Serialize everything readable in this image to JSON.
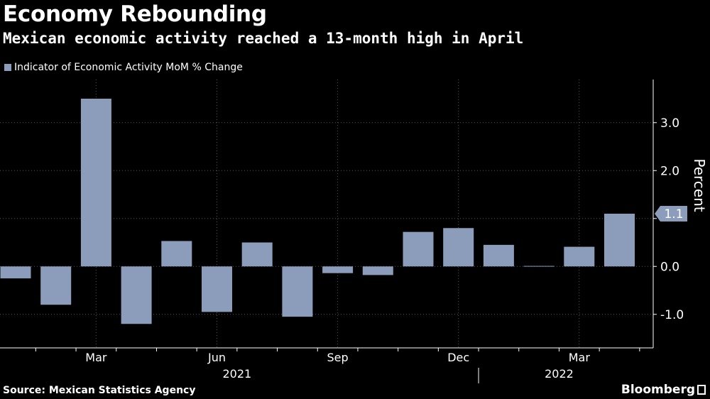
{
  "header": {
    "title": "Economy Rebounding",
    "subtitle": "Mexican economic activity reached a 13-month high in April"
  },
  "footer": {
    "source": "Source: Mexican Statistics Agency",
    "brand": "Bloomberg"
  },
  "colors": {
    "background": "#000000",
    "bar": "#8b9dbb",
    "text": "#ffffff",
    "grid": "#555555"
  },
  "chart_data": {
    "type": "bar",
    "series": [
      {
        "name": "Indicator of Economic Activity MoM % Change",
        "values": [
          -0.25,
          -0.8,
          3.5,
          -1.2,
          0.53,
          -0.95,
          0.5,
          -1.05,
          -0.14,
          -0.18,
          0.72,
          0.8,
          0.45,
          0.01,
          0.41,
          1.1
        ]
      }
    ],
    "months": [
      "2021-01",
      "2021-02",
      "2021-03",
      "2021-04",
      "2021-05",
      "2021-06",
      "2021-07",
      "2021-08",
      "2021-09",
      "2021-10",
      "2021-11",
      "2021-12",
      "2022-01",
      "2022-02",
      "2022-03",
      "2022-04"
    ],
    "x_tick_labels": [
      {
        "label": "Mar",
        "index": 2
      },
      {
        "label": "Jun",
        "index": 5
      },
      {
        "label": "Sep",
        "index": 8
      },
      {
        "label": "Dec",
        "index": 11
      },
      {
        "label": "Mar",
        "index": 14
      }
    ],
    "year_labels": [
      {
        "label": "2021",
        "center_index": 5.5
      },
      {
        "label": "2022",
        "center_index": 13.5
      }
    ],
    "year_divider_after_index": 11.5,
    "y_ticks": [
      3.0,
      2.0,
      1.0,
      0.0,
      -1.0
    ],
    "y_tick_labels": [
      "3.0",
      "2.0",
      "",
      "0.0",
      "-1.0"
    ],
    "ylim": [
      -1.7,
      3.9
    ],
    "ylabel": "Percent",
    "last_value_label": "1.1",
    "last_value": 1.1,
    "grid": true,
    "legend_position": "top-left"
  }
}
